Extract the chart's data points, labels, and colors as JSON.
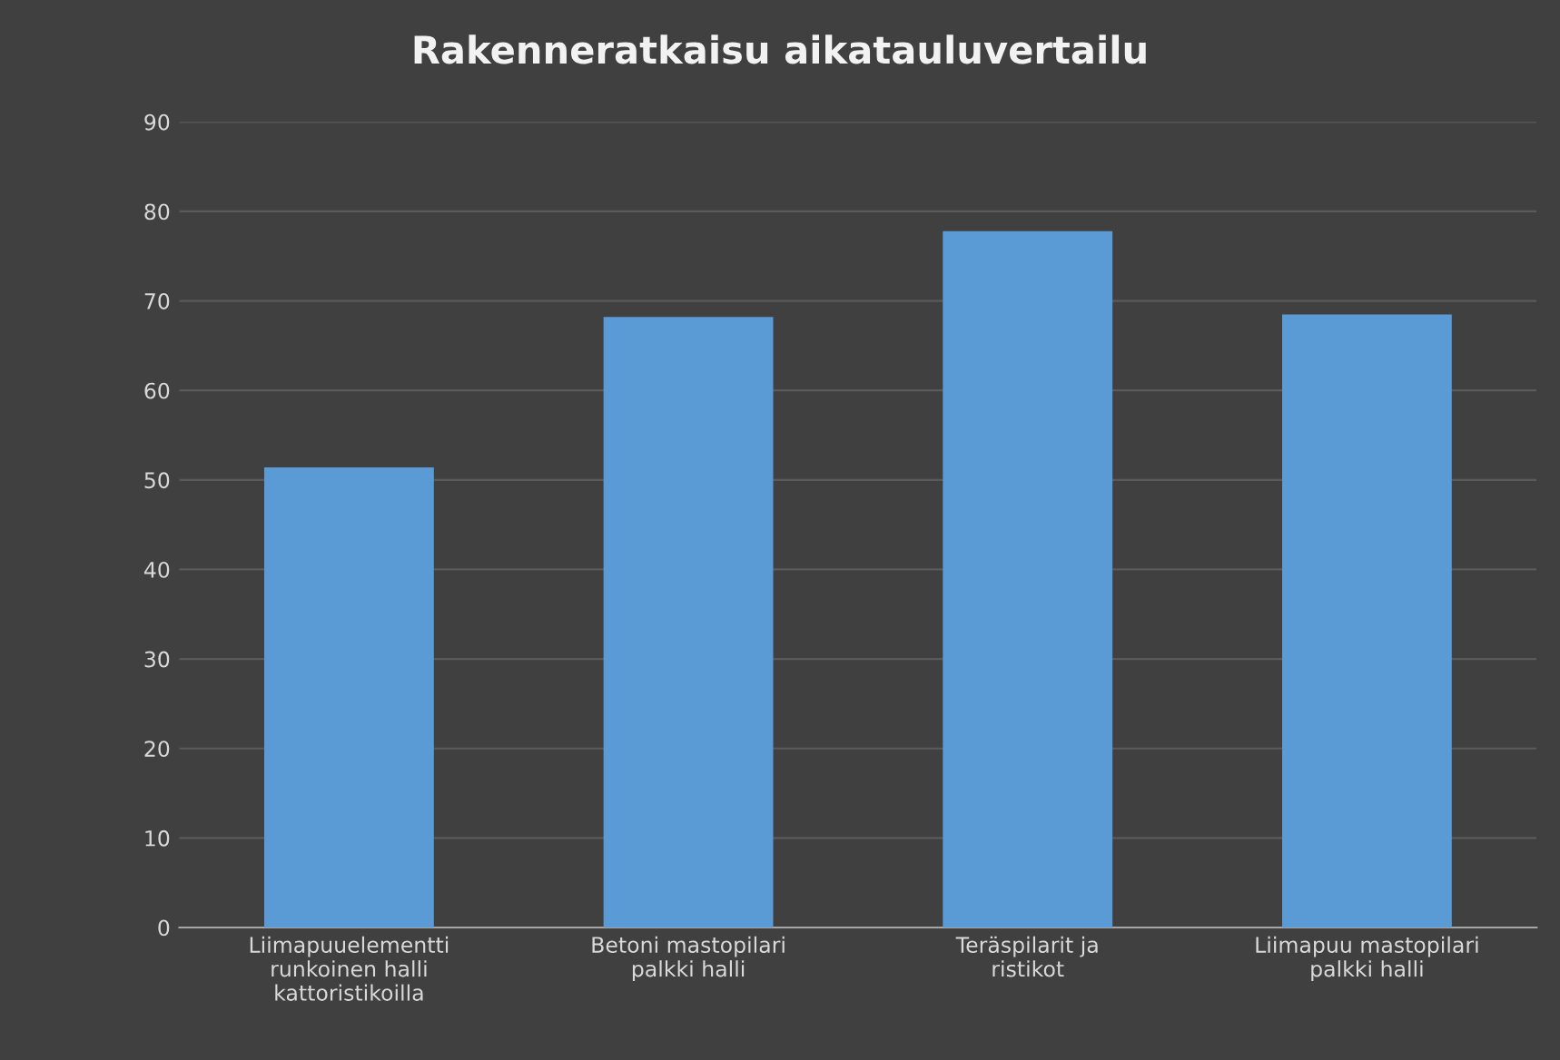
{
  "chart_data": {
    "type": "bar",
    "title": "Rakenneratkaisu aikatauluvertailu",
    "categories": [
      "Liimapuuelementti runkoinen halli kattoristikoilla",
      "Betoni mastopilari palkki halli",
      "Teräspilarit ja ristikot",
      "Liimapuu mastopilari palkki halli"
    ],
    "values": [
      51.4,
      68.2,
      77.8,
      68.5
    ],
    "color": "#5b9bd5",
    "ylim": [
      0,
      90
    ],
    "yticks": [
      0,
      10,
      20,
      30,
      40,
      50,
      60,
      70,
      80,
      90
    ],
    "grid": "y",
    "legend": false
  }
}
